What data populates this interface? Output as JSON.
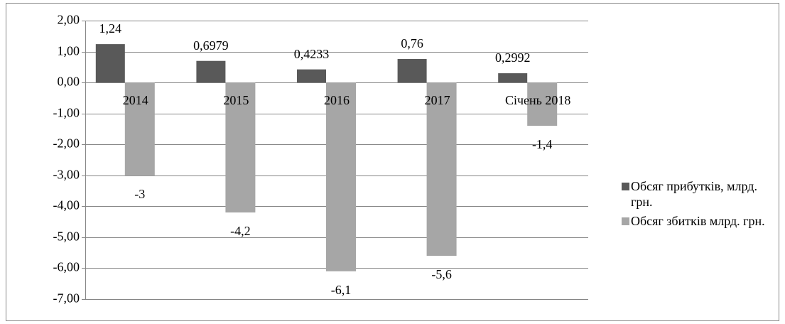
{
  "chart_data": {
    "type": "bar",
    "categories": [
      "2014",
      "2015",
      "2016",
      "2017",
      "Січень 2018"
    ],
    "series": [
      {
        "name": "Обсяг прибутків, млрд. грн.",
        "color": "#595959",
        "values": [
          1.24,
          0.6979,
          0.4233,
          0.76,
          0.2992
        ],
        "value_labels": [
          "1,24",
          "0,6979",
          "0,4233",
          "0,76",
          "0,2992"
        ]
      },
      {
        "name": "Обсяг збитків млрд. грн.",
        "color": "#a6a6a6",
        "values": [
          -3,
          -4.2,
          -6.1,
          -5.6,
          -1.4
        ],
        "value_labels": [
          "-3",
          "-4,2",
          "-6,1",
          "-5,6",
          "-1,4"
        ]
      }
    ],
    "ylim": [
      -7,
      2
    ],
    "yticks": [
      {
        "value": 2,
        "label": "2,00"
      },
      {
        "value": 1,
        "label": "1,00"
      },
      {
        "value": 0,
        "label": "0,00"
      },
      {
        "value": -1,
        "label": "-1,00"
      },
      {
        "value": -2,
        "label": "-2,00"
      },
      {
        "value": -3,
        "label": "-3,00"
      },
      {
        "value": -4,
        "label": "-4,00"
      },
      {
        "value": -5,
        "label": "-5,00"
      },
      {
        "value": -6,
        "label": "-6,00"
      },
      {
        "value": -7,
        "label": "-7,00"
      }
    ],
    "grid": true,
    "legend": "right"
  }
}
